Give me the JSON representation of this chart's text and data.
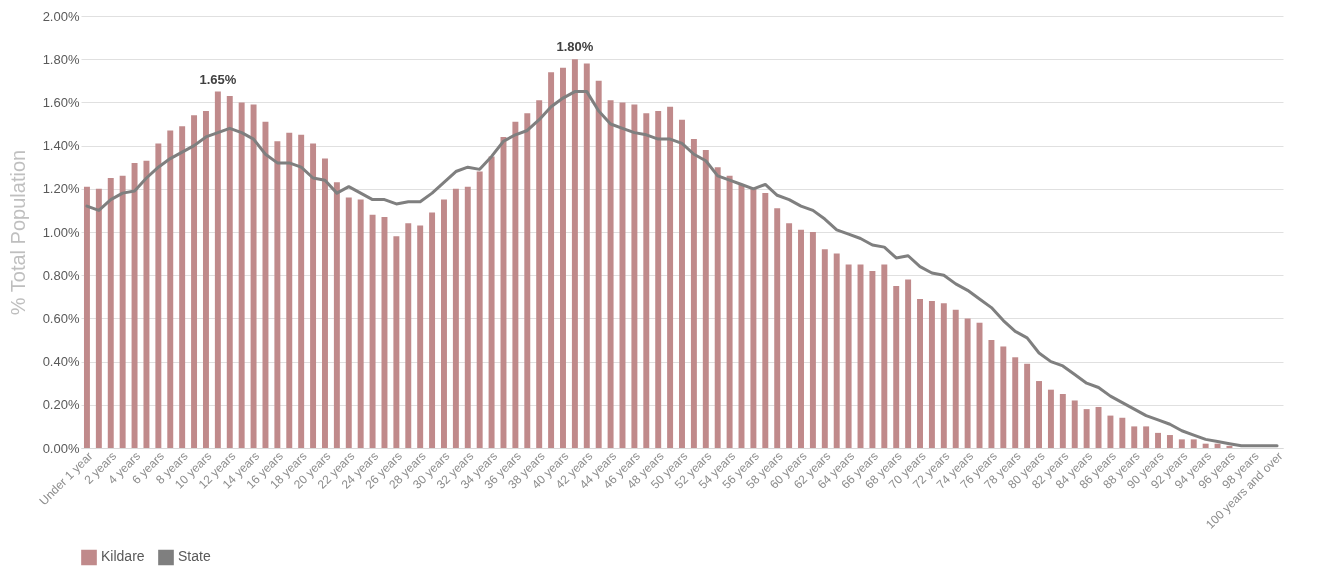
{
  "chart_data": {
    "type": "bar",
    "ylabel": "% Total Population",
    "categories": [
      "Under 1 year",
      null,
      "2 years",
      null,
      "4 years",
      null,
      "6 years",
      null,
      "8 years",
      null,
      "10 years",
      null,
      "12 years",
      null,
      "14 years",
      null,
      "16 years",
      null,
      "18 years",
      null,
      "20 years",
      null,
      "22 years",
      null,
      "24 years",
      null,
      "26 years",
      null,
      "28 years",
      null,
      "30 years",
      null,
      "32 years",
      null,
      "34 years",
      null,
      "36 years",
      null,
      "38 years",
      null,
      "40 years",
      null,
      "42 years",
      null,
      "44 years",
      null,
      "46 years",
      null,
      "48 years",
      null,
      "50 years",
      null,
      "52 years",
      null,
      "54 years",
      null,
      "56 years",
      null,
      "58 years",
      null,
      "60 years",
      null,
      "62 years",
      null,
      "64 years",
      null,
      "66 years",
      null,
      "68 years",
      null,
      "70 years",
      null,
      "72 years",
      null,
      "74 years",
      null,
      "76 years",
      null,
      "78 years",
      null,
      "80 years",
      null,
      "82 years",
      null,
      "84 years",
      null,
      "86 years",
      null,
      "88 years",
      null,
      "90 years",
      null,
      "92 years",
      null,
      "94 years",
      null,
      "96 years",
      null,
      "98 years",
      null,
      "100 years and over"
    ],
    "series": [
      {
        "name": "Kildare",
        "color": "#c08a8b",
        "values": [
          1.21,
          1.2,
          1.25,
          1.26,
          1.32,
          1.33,
          1.41,
          1.47,
          1.49,
          1.54,
          1.56,
          1.65,
          1.63,
          1.6,
          1.59,
          1.51,
          1.42,
          1.46,
          1.45,
          1.41,
          1.34,
          1.23,
          1.16,
          1.15,
          1.08,
          1.07,
          0.98,
          1.04,
          1.03,
          1.09,
          1.15,
          1.2,
          1.21,
          1.28,
          1.35,
          1.44,
          1.51,
          1.55,
          1.61,
          1.74,
          1.76,
          1.8,
          1.78,
          1.7,
          1.61,
          1.6,
          1.59,
          1.55,
          1.56,
          1.58,
          1.52,
          1.43,
          1.38,
          1.3,
          1.26,
          1.22,
          1.2,
          1.18,
          1.11,
          1.04,
          1.01,
          1.0,
          0.92,
          0.9,
          0.85,
          0.85,
          0.82,
          0.85,
          0.75,
          0.78,
          0.69,
          0.68,
          0.67,
          0.64,
          0.6,
          0.58,
          0.5,
          0.47,
          0.42,
          0.39,
          0.31,
          0.27,
          0.25,
          0.22,
          0.18,
          0.19,
          0.15,
          0.14,
          0.1,
          0.1,
          0.07,
          0.06,
          0.04,
          0.04,
          0.02,
          0.02,
          0.01,
          null,
          0.0,
          0.0,
          0.0
        ],
        "value_labels": [
          null,
          null,
          null,
          null,
          null,
          null,
          null,
          null,
          null,
          null,
          null,
          "1.65%",
          null,
          null,
          null,
          null,
          null,
          null,
          null,
          null,
          null,
          null,
          null,
          null,
          null,
          null,
          null,
          null,
          null,
          null,
          null,
          null,
          null,
          null,
          null,
          null,
          null,
          null,
          null,
          null,
          null,
          "1.80%",
          null,
          null,
          null,
          null,
          null,
          null,
          null,
          null,
          null,
          null,
          null,
          null,
          null,
          null,
          null,
          null,
          null,
          null,
          null,
          null,
          null,
          null,
          null,
          null,
          null,
          null,
          null,
          null,
          null,
          null,
          null,
          null,
          null,
          null,
          null,
          null,
          null,
          null,
          null,
          null,
          null,
          null,
          null,
          null,
          null,
          null,
          null,
          null,
          null,
          null,
          null,
          null,
          null,
          null,
          null,
          null,
          null,
          null,
          null
        ]
      },
      {
        "name": "State",
        "type": "line",
        "color": "#7f7f7f",
        "values": [
          1.12,
          1.1,
          1.15,
          1.18,
          1.19,
          1.25,
          1.3,
          1.34,
          1.37,
          1.4,
          1.44,
          1.46,
          1.48,
          1.46,
          1.43,
          1.36,
          1.32,
          1.32,
          1.3,
          1.25,
          1.24,
          1.18,
          1.21,
          1.18,
          1.15,
          1.15,
          1.13,
          1.14,
          1.14,
          1.18,
          1.23,
          1.28,
          1.3,
          1.29,
          1.35,
          1.42,
          1.45,
          1.47,
          1.52,
          1.58,
          1.62,
          1.65,
          1.65,
          1.56,
          1.5,
          1.48,
          1.46,
          1.45,
          1.43,
          1.43,
          1.41,
          1.36,
          1.33,
          1.26,
          1.24,
          1.22,
          1.2,
          1.22,
          1.17,
          1.15,
          1.12,
          1.1,
          1.06,
          1.01,
          0.99,
          0.97,
          0.94,
          0.93,
          0.88,
          0.89,
          0.84,
          0.81,
          0.8,
          0.76,
          0.73,
          0.69,
          0.65,
          0.59,
          0.54,
          0.51,
          0.44,
          0.4,
          0.38,
          0.34,
          0.3,
          0.28,
          0.24,
          0.21,
          0.18,
          0.15,
          0.13,
          0.11,
          0.08,
          0.06,
          0.04,
          0.03,
          0.02,
          0.01,
          0.01,
          0.01,
          0.01
        ]
      }
    ],
    "ylim": [
      0,
      2
    ],
    "yticks": [
      {
        "value": 0,
        "label": "0.00%"
      },
      {
        "value": 0.2,
        "label": "0.20%"
      },
      {
        "value": 0.4,
        "label": "0.40%"
      },
      {
        "value": 0.6,
        "label": "0.60%"
      },
      {
        "value": 0.8,
        "label": "0.80%"
      },
      {
        "value": 1,
        "label": "1.00%"
      },
      {
        "value": 1.2,
        "label": "1.20%"
      },
      {
        "value": 1.4,
        "label": "1.40%"
      },
      {
        "value": 1.6,
        "label": "1.60%"
      },
      {
        "value": 1.8,
        "label": "1.80%"
      },
      {
        "value": 2,
        "label": "2.00%"
      }
    ],
    "grid": "y",
    "legend": "bottom",
    "line_style": "solid",
    "marker": "none"
  }
}
